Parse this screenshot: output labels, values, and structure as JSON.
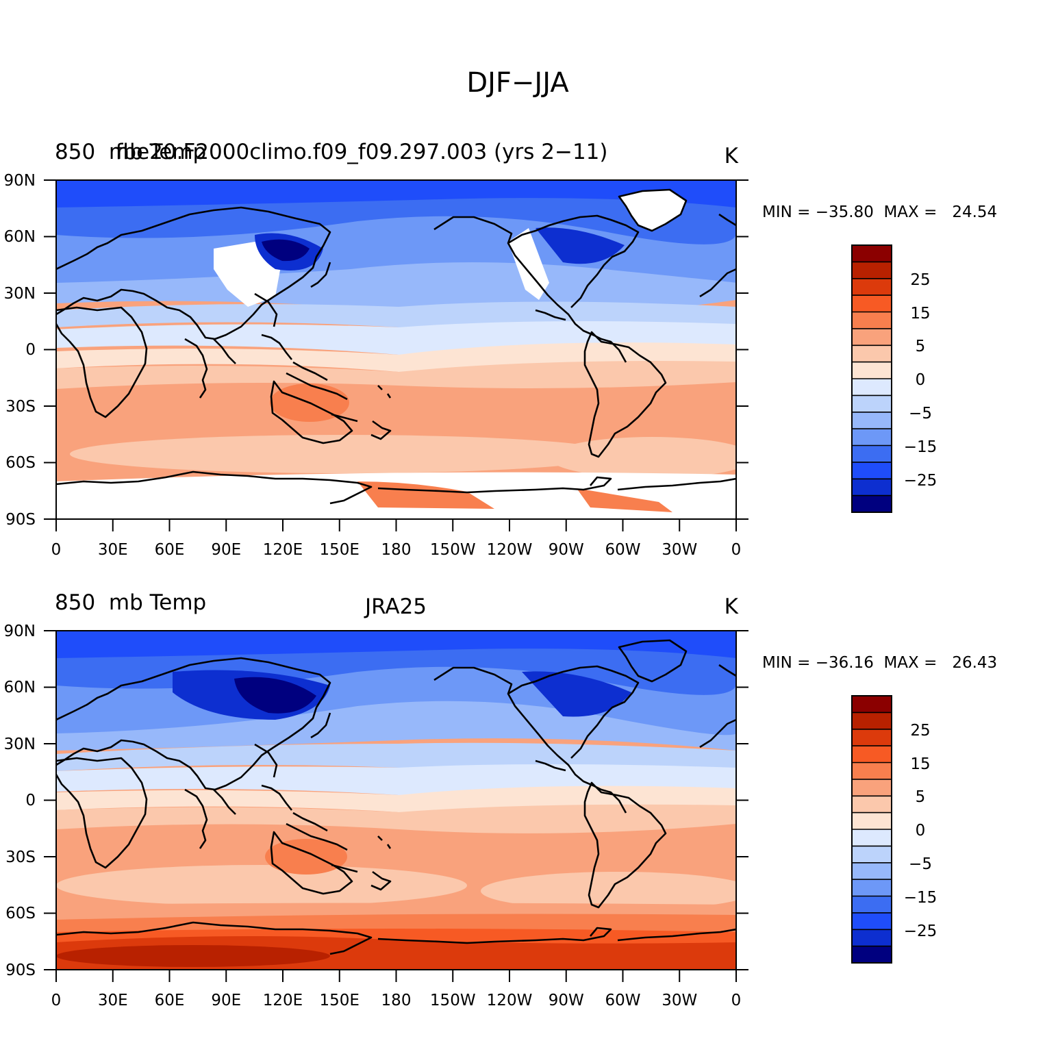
{
  "figure": {
    "title": "DJF−JJA"
  },
  "colors": {
    "levels": [
      "#00007f",
      "#0a1ea8",
      "#0d2fd0",
      "#1f4dfa",
      "#3c6df2",
      "#6d98f7",
      "#97b8fa",
      "#bcd3fb",
      "#dde9fe",
      "#fde4d3",
      "#fbc8ac",
      "#f9a27c",
      "#f87f4e",
      "#f75a24",
      "#dc3a0c",
      "#b82100",
      "#8b0000"
    ],
    "land_missing": "#ffffff",
    "coast": "#000000"
  },
  "colorbar": {
    "tick_labels": [
      "25",
      "15",
      "5",
      "0",
      "−5",
      "−15",
      "−25"
    ]
  },
  "lat_labels": [
    "90N",
    "60N",
    "30N",
    "0",
    "30S",
    "60S",
    "90S"
  ],
  "lon_labels": [
    "0",
    "30E",
    "60E",
    "90E",
    "120E",
    "150E",
    "180",
    "150W",
    "120W",
    "90W",
    "60W",
    "30W",
    "0"
  ],
  "panels": [
    {
      "left_title": "850  mb Temp",
      "center_title": "fbe20.F2000climo.f09_f09.297.003 (yrs 2−11)",
      "units": "K",
      "stats": "MIN = −35.80  MAX =   24.54",
      "model": "model"
    },
    {
      "left_title": "850  mb Temp",
      "center_title": "JRA25",
      "units": "K",
      "stats": "MIN = −36.16  MAX =   26.43",
      "model": "obs"
    }
  ]
}
